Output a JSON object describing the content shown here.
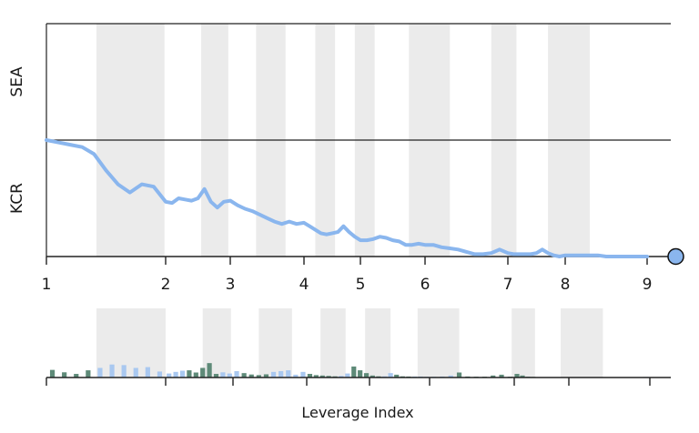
{
  "chart_data": [
    {
      "type": "line",
      "panel_labels": [
        "SEA",
        "KCR"
      ],
      "x_ticks": [
        1,
        2,
        3,
        4,
        5,
        6,
        7,
        8,
        9
      ],
      "shaded_bands": [
        [
          1.42,
          1.99
        ],
        [
          2.55,
          2.97
        ],
        [
          3.35,
          3.75
        ],
        [
          4.2,
          4.55
        ],
        [
          4.9,
          5.22
        ],
        [
          5.75,
          6.3
        ],
        [
          6.8,
          7.15
        ],
        [
          7.7,
          8.3
        ]
      ],
      "series_color": "#8ab6ee",
      "end_marker": {
        "x": 9.35,
        "y": 0.0
      },
      "x": [
        1.0,
        1.1,
        1.2,
        1.3,
        1.4,
        1.5,
        1.6,
        1.7,
        1.8,
        1.9,
        2.0,
        2.1,
        2.2,
        2.3,
        2.4,
        2.5,
        2.6,
        2.7,
        2.8,
        2.9,
        3.0,
        3.1,
        3.2,
        3.3,
        3.4,
        3.5,
        3.6,
        3.7,
        3.8,
        3.9,
        4.0,
        4.1,
        4.2,
        4.3,
        4.4,
        4.5,
        4.6,
        4.7,
        4.8,
        4.9,
        5.0,
        5.1,
        5.2,
        5.3,
        5.4,
        5.5,
        5.6,
        5.7,
        5.8,
        5.9,
        6.0,
        6.1,
        6.2,
        6.3,
        6.4,
        6.5,
        6.6,
        6.7,
        6.8,
        6.9,
        7.0,
        7.1,
        7.2,
        7.3,
        7.4,
        7.5,
        7.6,
        7.7,
        7.8,
        7.9,
        8.0,
        8.1,
        8.2,
        8.3,
        8.4,
        8.5,
        8.6,
        8.7,
        8.8,
        8.9,
        9.0
      ],
      "y": [
        1.0,
        0.98,
        0.96,
        0.94,
        0.88,
        0.74,
        0.62,
        0.55,
        0.62,
        0.6,
        0.47,
        0.46,
        0.5,
        0.49,
        0.48,
        0.5,
        0.58,
        0.47,
        0.42,
        0.47,
        0.48,
        0.44,
        0.41,
        0.39,
        0.36,
        0.33,
        0.3,
        0.28,
        0.3,
        0.28,
        0.29,
        0.26,
        0.23,
        0.2,
        0.19,
        0.2,
        0.21,
        0.26,
        0.21,
        0.17,
        0.14,
        0.14,
        0.15,
        0.17,
        0.16,
        0.14,
        0.13,
        0.1,
        0.1,
        0.11,
        0.1,
        0.1,
        0.08,
        0.07,
        0.06,
        0.04,
        0.02,
        0.02,
        0.03,
        0.06,
        0.03,
        0.02,
        0.02,
        0.02,
        0.02,
        0.03,
        0.06,
        0.03,
        0.01,
        0.0,
        0.01,
        0.01,
        0.01,
        0.01,
        0.01,
        0.0,
        0.0,
        0.0,
        0.0,
        0.0,
        0.0
      ]
    },
    {
      "type": "bar",
      "xlabel": "Leverage Index",
      "x_ticks": [
        1,
        2,
        3,
        4,
        5,
        6,
        7,
        8,
        9
      ],
      "shaded_bands": [
        [
          1.42,
          2.0
        ],
        [
          2.55,
          2.97
        ],
        [
          3.35,
          3.8
        ],
        [
          4.22,
          4.62
        ],
        [
          4.93,
          5.35
        ],
        [
          5.8,
          6.35
        ],
        [
          6.97,
          7.38
        ],
        [
          7.85,
          8.42
        ]
      ],
      "colors": {
        "dark": "#5e8a78",
        "light": "#a9c8f0"
      },
      "bars": [
        {
          "x": 1.05,
          "value": 0.38,
          "kind": "dark"
        },
        {
          "x": 1.15,
          "value": 0.26,
          "kind": "dark"
        },
        {
          "x": 1.25,
          "value": 0.18,
          "kind": "dark"
        },
        {
          "x": 1.35,
          "value": 0.36,
          "kind": "dark"
        },
        {
          "x": 1.45,
          "value": 0.48,
          "kind": "light"
        },
        {
          "x": 1.55,
          "value": 0.65,
          "kind": "light"
        },
        {
          "x": 1.65,
          "value": 0.62,
          "kind": "light"
        },
        {
          "x": 1.75,
          "value": 0.48,
          "kind": "light"
        },
        {
          "x": 1.85,
          "value": 0.52,
          "kind": "light"
        },
        {
          "x": 1.95,
          "value": 0.3,
          "kind": "light"
        },
        {
          "x": 2.05,
          "value": 0.2,
          "kind": "light"
        },
        {
          "x": 2.15,
          "value": 0.28,
          "kind": "light"
        },
        {
          "x": 2.25,
          "value": 0.34,
          "kind": "light"
        },
        {
          "x": 2.35,
          "value": 0.36,
          "kind": "dark"
        },
        {
          "x": 2.45,
          "value": 0.25,
          "kind": "dark"
        },
        {
          "x": 2.55,
          "value": 0.48,
          "kind": "dark"
        },
        {
          "x": 2.65,
          "value": 0.72,
          "kind": "dark"
        },
        {
          "x": 2.75,
          "value": 0.18,
          "kind": "dark"
        },
        {
          "x": 2.85,
          "value": 0.26,
          "kind": "light"
        },
        {
          "x": 2.95,
          "value": 0.2,
          "kind": "light"
        },
        {
          "x": 3.05,
          "value": 0.32,
          "kind": "light"
        },
        {
          "x": 3.15,
          "value": 0.22,
          "kind": "dark"
        },
        {
          "x": 3.25,
          "value": 0.15,
          "kind": "dark"
        },
        {
          "x": 3.35,
          "value": 0.12,
          "kind": "dark"
        },
        {
          "x": 3.45,
          "value": 0.16,
          "kind": "dark"
        },
        {
          "x": 3.55,
          "value": 0.28,
          "kind": "light"
        },
        {
          "x": 3.65,
          "value": 0.32,
          "kind": "light"
        },
        {
          "x": 3.75,
          "value": 0.36,
          "kind": "light"
        },
        {
          "x": 3.85,
          "value": 0.14,
          "kind": "light"
        },
        {
          "x": 3.95,
          "value": 0.28,
          "kind": "light"
        },
        {
          "x": 4.05,
          "value": 0.18,
          "kind": "dark"
        },
        {
          "x": 4.15,
          "value": 0.12,
          "kind": "dark"
        },
        {
          "x": 4.25,
          "value": 0.1,
          "kind": "dark"
        },
        {
          "x": 4.35,
          "value": 0.08,
          "kind": "dark"
        },
        {
          "x": 4.45,
          "value": 0.06,
          "kind": "dark"
        },
        {
          "x": 4.55,
          "value": 0.08,
          "kind": "light"
        },
        {
          "x": 4.65,
          "value": 0.2,
          "kind": "light"
        },
        {
          "x": 4.75,
          "value": 0.55,
          "kind": "dark"
        },
        {
          "x": 4.85,
          "value": 0.36,
          "kind": "dark"
        },
        {
          "x": 4.95,
          "value": 0.22,
          "kind": "dark"
        },
        {
          "x": 5.05,
          "value": 0.1,
          "kind": "dark"
        },
        {
          "x": 5.15,
          "value": 0.06,
          "kind": "dark"
        },
        {
          "x": 5.25,
          "value": 0.06,
          "kind": "light"
        },
        {
          "x": 5.35,
          "value": 0.22,
          "kind": "light"
        },
        {
          "x": 5.45,
          "value": 0.14,
          "kind": "dark"
        },
        {
          "x": 5.55,
          "value": 0.06,
          "kind": "dark"
        },
        {
          "x": 5.65,
          "value": 0.05,
          "kind": "dark"
        },
        {
          "x": 5.75,
          "value": 0.05,
          "kind": "light"
        },
        {
          "x": 5.85,
          "value": 0.05,
          "kind": "light"
        },
        {
          "x": 5.95,
          "value": 0.04,
          "kind": "light"
        },
        {
          "x": 6.05,
          "value": 0.04,
          "kind": "light"
        },
        {
          "x": 6.15,
          "value": 0.05,
          "kind": "light"
        },
        {
          "x": 6.25,
          "value": 0.1,
          "kind": "light"
        },
        {
          "x": 6.35,
          "value": 0.25,
          "kind": "dark"
        },
        {
          "x": 6.45,
          "value": 0.05,
          "kind": "dark"
        },
        {
          "x": 6.55,
          "value": 0.04,
          "kind": "dark"
        },
        {
          "x": 6.65,
          "value": 0.04,
          "kind": "dark"
        },
        {
          "x": 6.75,
          "value": 0.1,
          "kind": "dark"
        },
        {
          "x": 6.85,
          "value": 0.14,
          "kind": "dark"
        },
        {
          "x": 6.95,
          "value": 0.04,
          "kind": "dark"
        },
        {
          "x": 7.05,
          "value": 0.18,
          "kind": "dark"
        },
        {
          "x": 7.15,
          "value": 0.1,
          "kind": "dark"
        },
        {
          "x": 7.25,
          "value": 0.04,
          "kind": "dark"
        },
        {
          "x": 7.35,
          "value": 0.03,
          "kind": "dark"
        },
        {
          "x": 8.95,
          "value": 0.03,
          "kind": "light"
        }
      ]
    }
  ]
}
